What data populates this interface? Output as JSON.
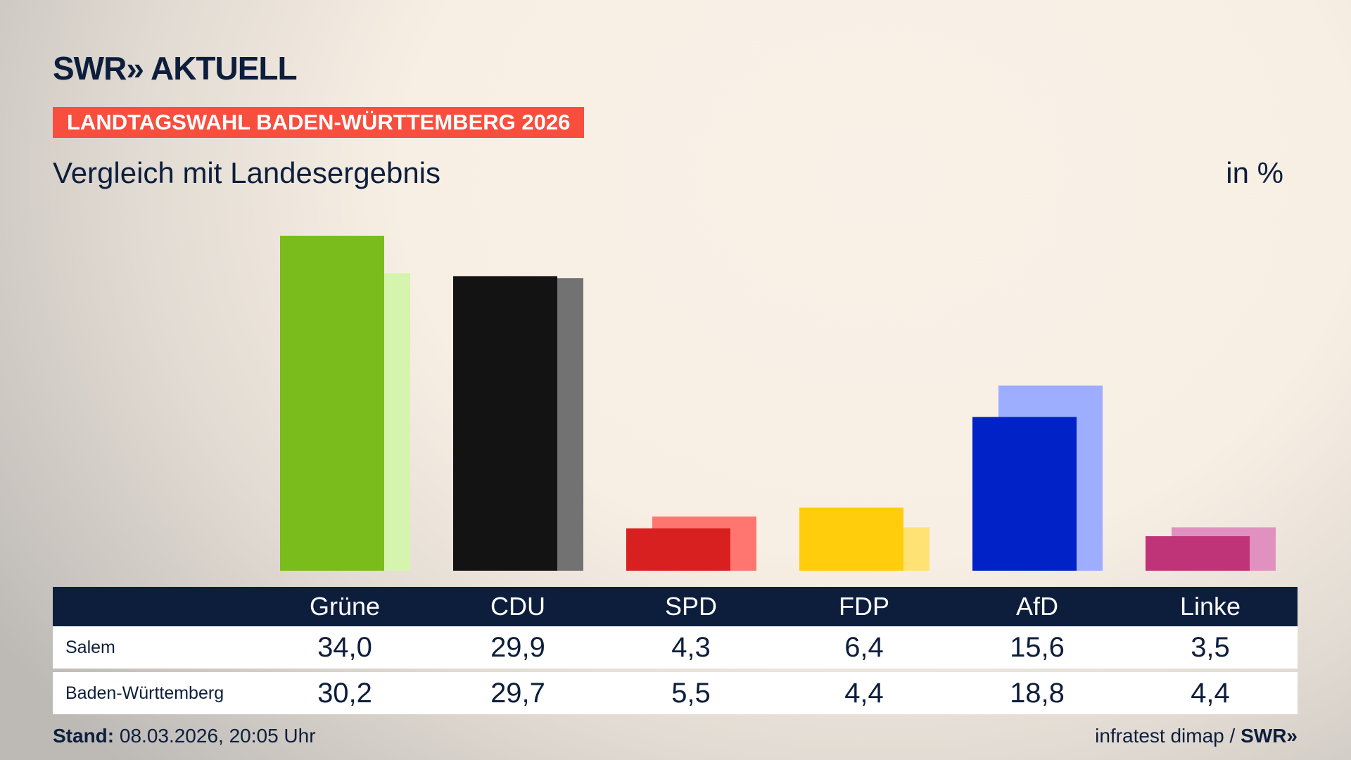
{
  "header": {
    "logo": "SWR» AKTUELL",
    "banner": "LANDTAGSWAHL BADEN-WÜRTTEMBERG 2026",
    "subtitle": "Vergleich mit Landesergebnis",
    "unit": "in %"
  },
  "chart_data": {
    "type": "bar",
    "categories": [
      "Grüne",
      "CDU",
      "SPD",
      "FDP",
      "AfD",
      "Linke"
    ],
    "series": [
      {
        "name": "Salem",
        "values": [
          34.0,
          29.9,
          4.3,
          6.4,
          15.6,
          3.5
        ]
      },
      {
        "name": "Baden-Württemberg",
        "values": [
          30.2,
          29.7,
          5.5,
          4.4,
          18.8,
          4.4
        ]
      }
    ],
    "colors": {
      "Salem": [
        "#79bc1c",
        "#131313",
        "#d7201f",
        "#ffcd0c",
        "#0022c6",
        "#bf3378"
      ],
      "Baden-Württemberg": [
        "#d5f5ae",
        "#727272",
        "#ff7670",
        "#ffe273",
        "#9dadff",
        "#e091bf"
      ]
    },
    "ylim": [
      0,
      34
    ]
  },
  "table": {
    "headers": [
      "Grüne",
      "CDU",
      "SPD",
      "FDP",
      "AfD",
      "Linke"
    ],
    "rows": [
      {
        "label": "Salem",
        "values": [
          "34,0",
          "29,9",
          "4,3",
          "6,4",
          "15,6",
          "3,5"
        ]
      },
      {
        "label": "Baden-Württemberg",
        "values": [
          "30,2",
          "29,7",
          "5,5",
          "4,4",
          "18,8",
          "4,4"
        ]
      }
    ]
  },
  "footer": {
    "stand_label": "Stand:",
    "stand_value": "08.03.2026, 20:05 Uhr",
    "source": "infratest dimap / ",
    "source_logo": "SWR»"
  }
}
